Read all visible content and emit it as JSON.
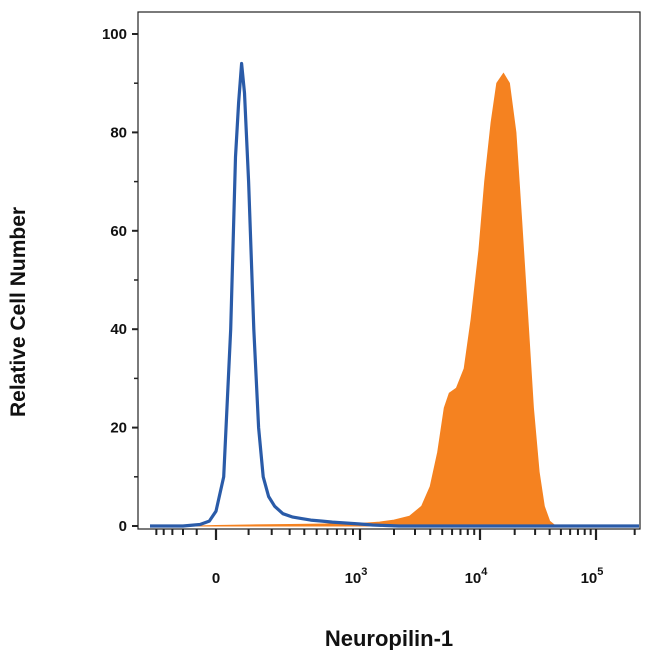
{
  "chart_data": {
    "type": "area",
    "title": "",
    "xlabel": "Neuropilin-1",
    "ylabel": "Relative Cell Number",
    "x_scale": "biexponential",
    "ylim": [
      0,
      100
    ],
    "y_ticks": [
      0,
      20,
      40,
      60,
      80,
      100
    ],
    "x_ticks": [
      {
        "value": 0,
        "base": "0",
        "exp": ""
      },
      {
        "value": 1000,
        "base": "10",
        "exp": "3"
      },
      {
        "value": 10000,
        "base": "10",
        "exp": "4"
      },
      {
        "value": 100000,
        "base": "10",
        "exp": "5"
      }
    ],
    "grid": false,
    "legend": "none",
    "series": [
      {
        "style": "outline",
        "color": "#2a5ba8",
        "points": [
          [
            -600,
            0
          ],
          [
            -200,
            0
          ],
          [
            -80,
            0.3
          ],
          [
            -30,
            1
          ],
          [
            0,
            3
          ],
          [
            20,
            10
          ],
          [
            40,
            40
          ],
          [
            55,
            75
          ],
          [
            65,
            86
          ],
          [
            75,
            94
          ],
          [
            85,
            88
          ],
          [
            100,
            70
          ],
          [
            120,
            40
          ],
          [
            140,
            20
          ],
          [
            160,
            10
          ],
          [
            185,
            6
          ],
          [
            215,
            4
          ],
          [
            260,
            2.5
          ],
          [
            320,
            1.8
          ],
          [
            380,
            1.5
          ],
          [
            450,
            1.2
          ],
          [
            550,
            1
          ],
          [
            650,
            0.8
          ],
          [
            800,
            0.6
          ],
          [
            1000,
            0.4
          ],
          [
            1300,
            0.2
          ],
          [
            1700,
            0.1
          ],
          [
            2200,
            0
          ],
          [
            10000,
            0
          ],
          [
            220000,
            0
          ]
        ]
      },
      {
        "style": "filled",
        "color": "#f58220",
        "points": [
          [
            -600,
            0
          ],
          [
            -100,
            0
          ],
          [
            0,
            0.1
          ],
          [
            100,
            0.2
          ],
          [
            300,
            0.3
          ],
          [
            600,
            0.4
          ],
          [
            1000,
            0.5
          ],
          [
            1500,
            0.8
          ],
          [
            2000,
            1.2
          ],
          [
            2700,
            2
          ],
          [
            3400,
            4
          ],
          [
            4000,
            8
          ],
          [
            4600,
            15
          ],
          [
            5200,
            24
          ],
          [
            5700,
            27
          ],
          [
            6500,
            28
          ],
          [
            7500,
            32
          ],
          [
            8500,
            42
          ],
          [
            9800,
            56
          ],
          [
            11000,
            70
          ],
          [
            12500,
            82
          ],
          [
            14000,
            90
          ],
          [
            16000,
            92
          ],
          [
            18000,
            90
          ],
          [
            20500,
            80
          ],
          [
            23000,
            62
          ],
          [
            26000,
            42
          ],
          [
            29000,
            24
          ],
          [
            32500,
            11
          ],
          [
            36000,
            4
          ],
          [
            40000,
            1
          ],
          [
            45000,
            0
          ],
          [
            220000,
            0
          ]
        ]
      }
    ]
  }
}
